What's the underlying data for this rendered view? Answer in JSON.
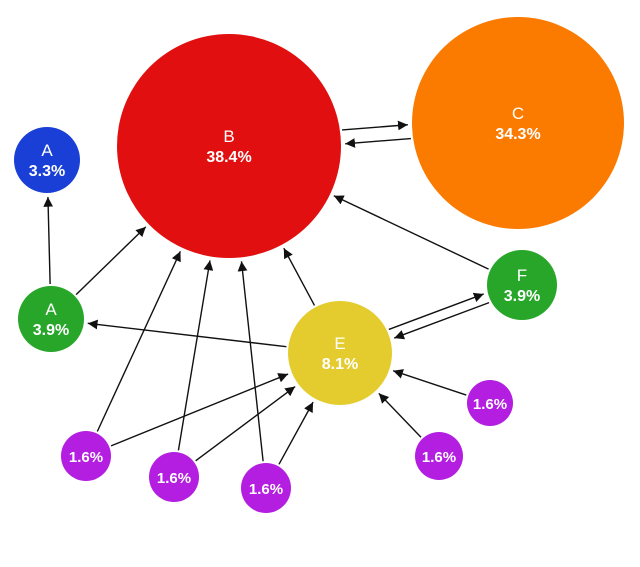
{
  "nodes": [
    {
      "id": "a_top",
      "name": "A",
      "value": "3.3%",
      "color": "#1a3fd6"
    },
    {
      "id": "b",
      "name": "B",
      "value": "38.4%",
      "color": "#e10f0f"
    },
    {
      "id": "c",
      "name": "C",
      "value": "34.3%",
      "color": "#fb7a00"
    },
    {
      "id": "a_mid",
      "name": "A",
      "value": "3.9%",
      "color": "#27a629"
    },
    {
      "id": "f",
      "name": "F",
      "value": "3.9%",
      "color": "#27a629"
    },
    {
      "id": "e",
      "name": "E",
      "value": "8.1%",
      "color": "#e4cc2f"
    },
    {
      "id": "p1",
      "name": "",
      "value": "1.6%",
      "color": "#b31ee0"
    },
    {
      "id": "p2",
      "name": "",
      "value": "1.6%",
      "color": "#b31ee0"
    },
    {
      "id": "p3",
      "name": "",
      "value": "1.6%",
      "color": "#b31ee0"
    },
    {
      "id": "p4",
      "name": "",
      "value": "1.6%",
      "color": "#b31ee0"
    },
    {
      "id": "p5",
      "name": "",
      "value": "1.6%",
      "color": "#b31ee0"
    }
  ],
  "edges": [
    {
      "from": "b",
      "to": "c"
    },
    {
      "from": "c",
      "to": "b"
    },
    {
      "from": "a_mid",
      "to": "a_top"
    },
    {
      "from": "a_mid",
      "to": "b"
    },
    {
      "from": "e",
      "to": "a_mid"
    },
    {
      "from": "e",
      "to": "b"
    },
    {
      "from": "f",
      "to": "b"
    },
    {
      "from": "e",
      "to": "f"
    },
    {
      "from": "f",
      "to": "e"
    },
    {
      "from": "p1",
      "to": "b"
    },
    {
      "from": "p1",
      "to": "e"
    },
    {
      "from": "p2",
      "to": "b"
    },
    {
      "from": "p2",
      "to": "e"
    },
    {
      "from": "p3",
      "to": "b"
    },
    {
      "from": "p3",
      "to": "e"
    },
    {
      "from": "p4",
      "to": "e"
    },
    {
      "from": "p5",
      "to": "e"
    }
  ]
}
